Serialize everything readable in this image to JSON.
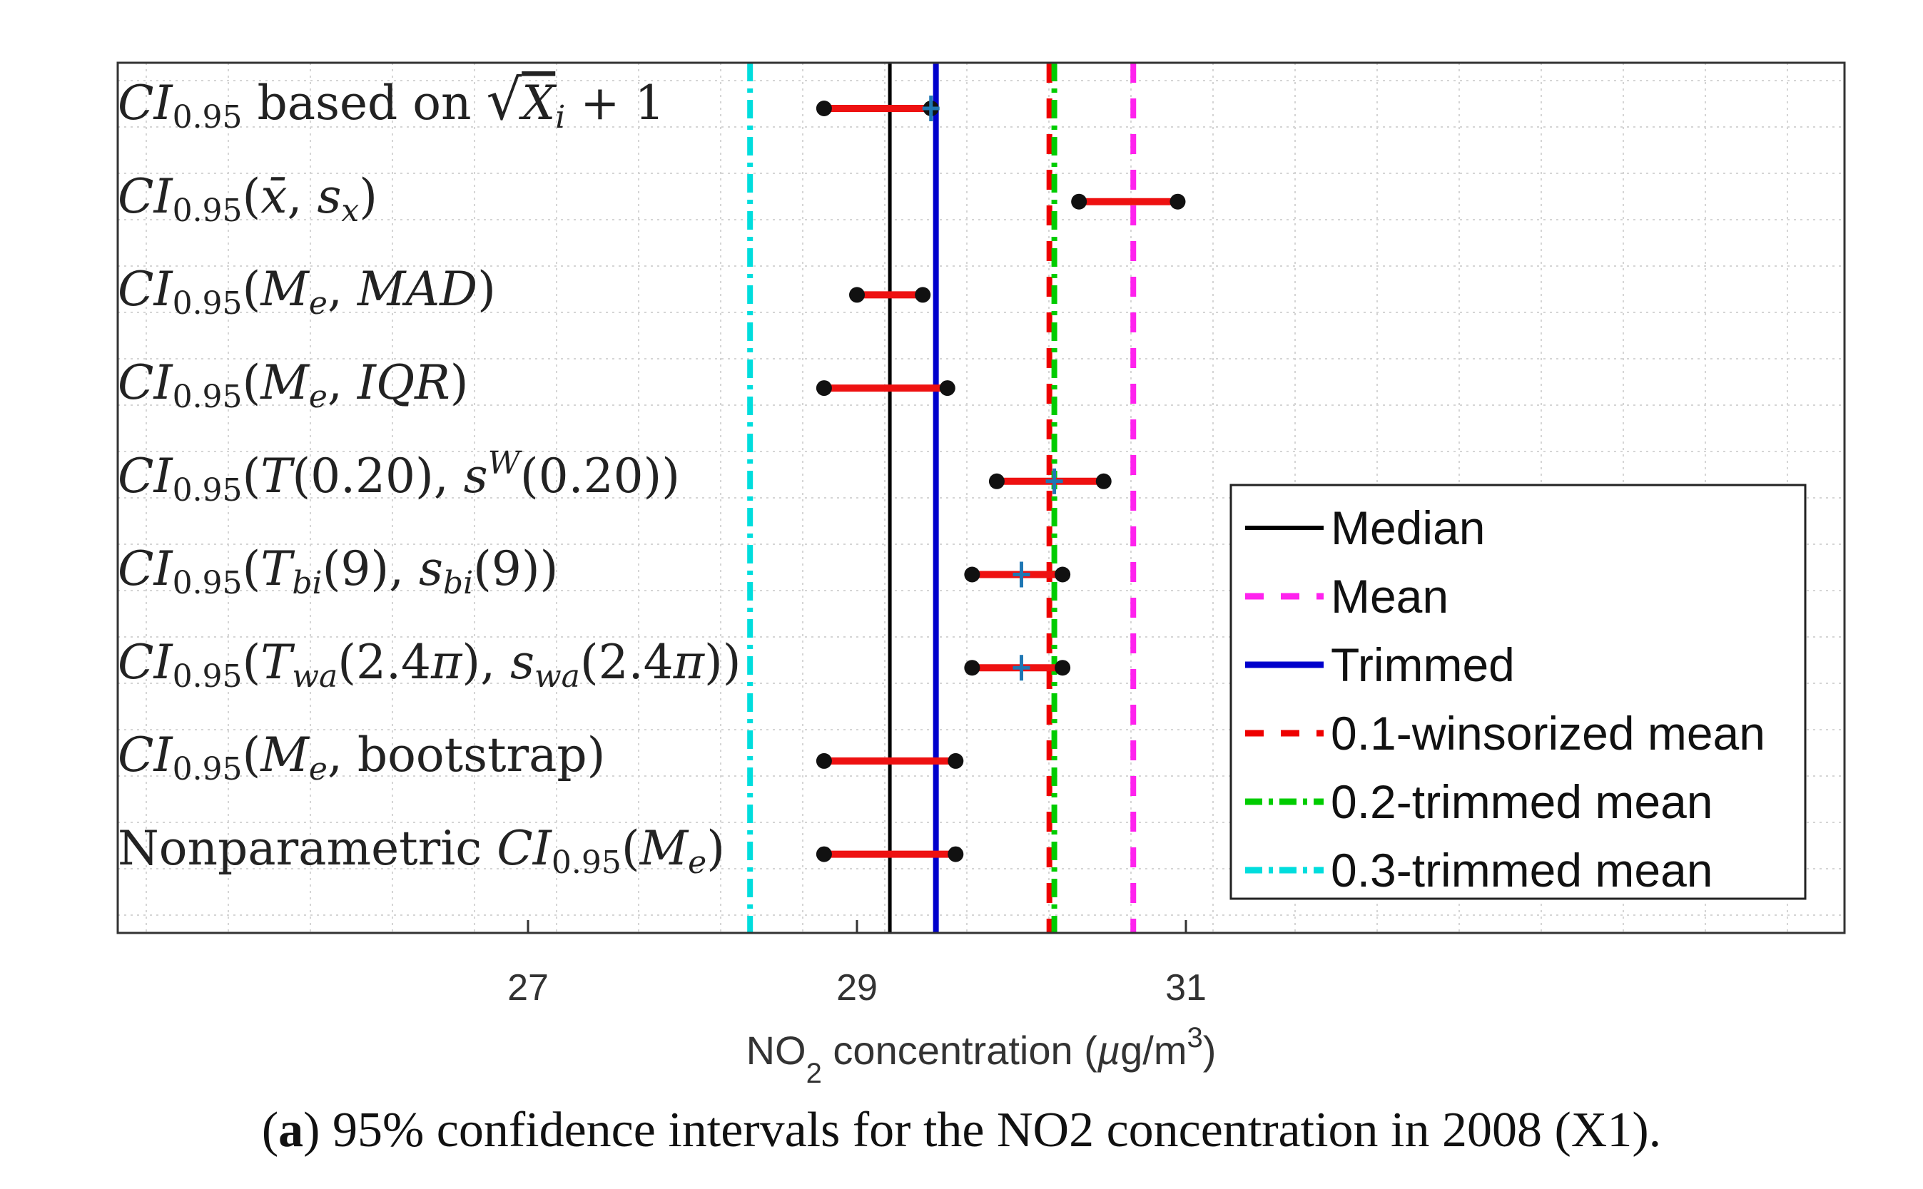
{
  "chart_data": {
    "type": "interval",
    "xlabel": "NO2 concentration (µg/m3)",
    "xlabel_main": "NO",
    "xlabel_sub": "2",
    "xlabel_rest": " concentration (",
    "xlabel_mu": "µ",
    "xlabel_unit": "g/m",
    "xlabel_sup": "3",
    "xlabel_close": ")",
    "xlim": [
      24.5,
      35.0
    ],
    "xticks": [
      27,
      29,
      31
    ],
    "xtick_labels": [
      "27",
      "29",
      "31"
    ],
    "rows": [
      {
        "label": "CI0.95 based on √(Xi + 1)",
        "lo": 28.8,
        "hi": 29.45,
        "est": 29.45
      },
      {
        "label": "CI0.95(x̄, sx)",
        "lo": 30.35,
        "hi": 30.95,
        "est": null
      },
      {
        "label": "CI0.95(Me, MAD)",
        "lo": 29.0,
        "hi": 29.4,
        "est": null
      },
      {
        "label": "CI0.95(Me, IQR)",
        "lo": 28.8,
        "hi": 29.55,
        "est": null
      },
      {
        "label": "CI0.95(T(0.20), sW(0.20))",
        "lo": 29.85,
        "hi": 30.5,
        "est": 30.2
      },
      {
        "label": "CI0.95(Tbi(9), sbi(9))",
        "lo": 29.7,
        "hi": 30.25,
        "est": 30.0
      },
      {
        "label": "CI0.95(Twa(2.4π), swa(2.4π))",
        "lo": 29.7,
        "hi": 30.25,
        "est": 30.0
      },
      {
        "label": "CI0.95(Me, bootstrap)",
        "lo": 28.8,
        "hi": 29.6,
        "est": null
      },
      {
        "label": "Nonparametric CI0.95(Me)",
        "lo": 28.8,
        "hi": 29.6,
        "est": null
      }
    ],
    "reference_lines": [
      {
        "name": "Median",
        "x": 29.2,
        "color": "#000000",
        "style": "solid"
      },
      {
        "name": "Mean",
        "x": 30.68,
        "color": "#ff22ee",
        "style": "dashed"
      },
      {
        "name": "Trimmed",
        "x": 29.48,
        "color": "#0000cc",
        "style": "solid"
      },
      {
        "name": "0.1-winsorized mean",
        "x": 30.17,
        "color": "#ee0000",
        "style": "dashed"
      },
      {
        "name": "0.2-trimmed  mean",
        "x": 30.2,
        "color": "#00cc00",
        "style": "dashdot"
      },
      {
        "name": "0.3-trimmed  mean",
        "x": 28.35,
        "color": "#00dddd",
        "style": "dashdot"
      }
    ],
    "interval_color": "#ee1111",
    "endpoint_color": "#111111",
    "estimate_color": "#1f77b4",
    "grid": true,
    "legend_position": "right"
  },
  "caption": {
    "tag": "a",
    "text": " 95% confidence intervals for the NO2 concentration in 2008 (X1).",
    "pre": "(",
    "post_tag": ")"
  }
}
